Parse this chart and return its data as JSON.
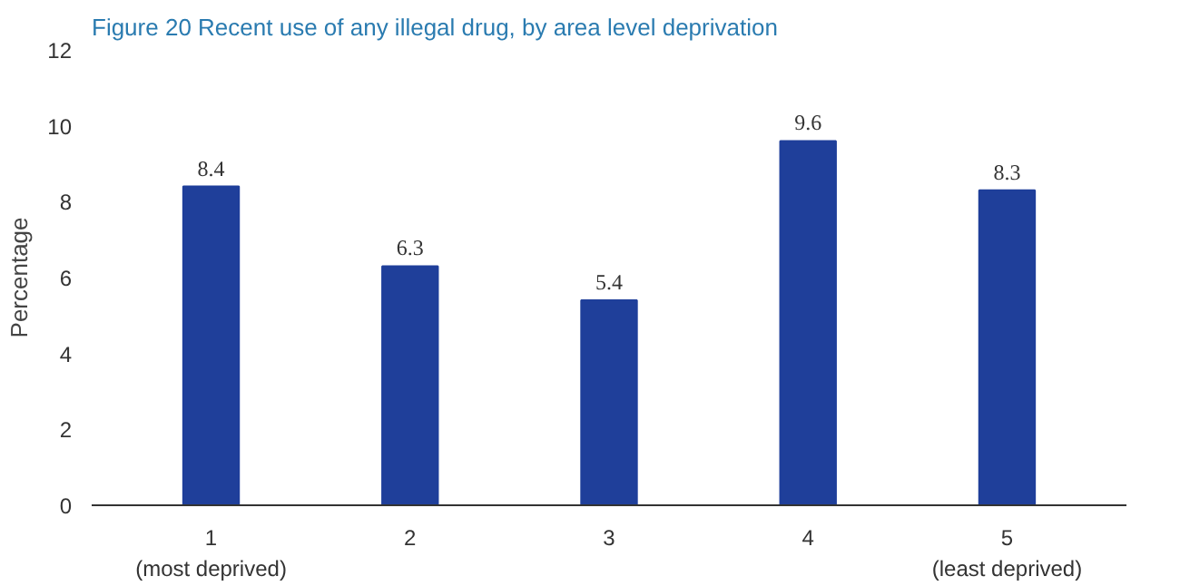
{
  "chart_data": {
    "type": "bar",
    "title": "Figure 20 Recent use of any illegal drug, by area level deprivation",
    "ylabel": "Percentage",
    "categories": [
      "1\n(most deprived)",
      "2",
      "3",
      "4",
      "5\n(least deprived)"
    ],
    "values": [
      8.4,
      6.3,
      5.4,
      9.6,
      8.3
    ],
    "color": "#1f3f9a",
    "ylim": [
      0,
      12
    ],
    "yticks": [
      0,
      2,
      4,
      6,
      8,
      10,
      12
    ],
    "grid": false,
    "data_labels": true
  }
}
